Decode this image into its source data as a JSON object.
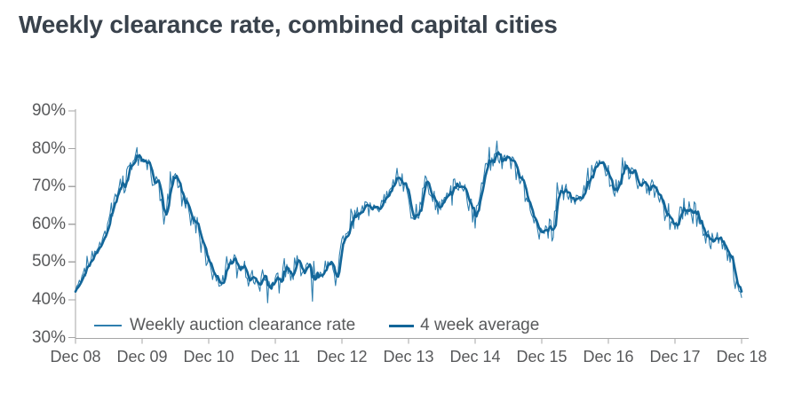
{
  "chart_data": {
    "type": "line",
    "title": "Weekly clearance rate, combined capital cities",
    "xlabel": "",
    "ylabel": "",
    "ylim": [
      30,
      90
    ],
    "x_range_years": [
      0,
      10
    ],
    "grid": false,
    "legend_position": "bottom-inside",
    "colors": {
      "title": "#39424c",
      "tick_label": "#58595b",
      "axis": "#a6a6a6",
      "weekly_line": "#2e7eae",
      "average_line": "#136699"
    },
    "y_ticks": [
      {
        "v": 30,
        "label": "30%"
      },
      {
        "v": 40,
        "label": "40%"
      },
      {
        "v": 50,
        "label": "50%"
      },
      {
        "v": 60,
        "label": "60%"
      },
      {
        "v": 70,
        "label": "70%"
      },
      {
        "v": 80,
        "label": "80%"
      },
      {
        "v": 90,
        "label": "90%"
      }
    ],
    "x_ticks": [
      {
        "t": 0,
        "label": "Dec 08"
      },
      {
        "t": 1,
        "label": "Dec 09"
      },
      {
        "t": 2,
        "label": "Dec 10"
      },
      {
        "t": 3,
        "label": "Dec 11"
      },
      {
        "t": 4,
        "label": "Dec 12"
      },
      {
        "t": 5,
        "label": "Dec 13"
      },
      {
        "t": 6,
        "label": "Dec 14"
      },
      {
        "t": 7,
        "label": "Dec 15"
      },
      {
        "t": 8,
        "label": "Dec 16"
      },
      {
        "t": 9,
        "label": "Dec 17"
      },
      {
        "t": 10,
        "label": "Dec 18"
      }
    ],
    "legend": [
      {
        "label": "Weekly auction clearance rate",
        "style": "thin"
      },
      {
        "label": "4 week average",
        "style": "thick"
      }
    ],
    "series_notes": "avg_points_monthly_pct are 4-week-average values read off the chart each month from Dec 2008 (index 0) to Dec 2018 (index 120); the weekly series is this trend plus weekly scatter.",
    "avg_points_monthly_pct": [
      44.0,
      45.7,
      48.6,
      50.5,
      54.3,
      58.2,
      60.6,
      65.3,
      69.8,
      72.2,
      76.1,
      78.5,
      77.2,
      75.6,
      73.0,
      71.5,
      59.0,
      70.0,
      74.0,
      68.0,
      63.7,
      60.2,
      58.2,
      54.3,
      49.6,
      46.5,
      44.2,
      47.5,
      50.8,
      49.0,
      47.6,
      46.8,
      46.2,
      45.8,
      45.5,
      44.0,
      43.8,
      46.0,
      48.0,
      47.0,
      48.8,
      46.5,
      48.0,
      46.5,
      45.2,
      49.5,
      50.4,
      46.5,
      53.5,
      58.2,
      61.4,
      62.2,
      64.0,
      65.7,
      63.3,
      64.5,
      67.2,
      70.6,
      72.5,
      71.3,
      66.5,
      63.3,
      62.2,
      72.2,
      67.2,
      65.3,
      66.5,
      68.5,
      69.5,
      71.8,
      67.5,
      64.3,
      61.2,
      70.0,
      74.8,
      76.5,
      78.4,
      78.0,
      76.8,
      74.5,
      72.0,
      69.0,
      64.0,
      59.8,
      58.2,
      57.8,
      58.5,
      67.5,
      66.8,
      68.0,
      66.0,
      66.9,
      70.9,
      74.5,
      76.1,
      75.4,
      73.7,
      68.5,
      71.0,
      74.7,
      74.0,
      72.4,
      69.6,
      70.4,
      69.0,
      67.8,
      64.1,
      61.4,
      60.5,
      62.5,
      64.2,
      63.3,
      61.5,
      59.0,
      56.6,
      55.8,
      55.2,
      53.0,
      50.5,
      44.5,
      41.5
    ],
    "weekly_extremes": [
      {
        "t_years": 0.92,
        "value_pct": 80.3
      },
      {
        "t_years": 2.88,
        "value_pct": 39.2
      },
      {
        "t_years": 3.56,
        "value_pct": 39.6
      },
      {
        "t_years": 4.83,
        "value_pct": 74.8
      },
      {
        "t_years": 6.33,
        "value_pct": 82.0
      },
      {
        "t_years": 7.24,
        "value_pct": 71.0
      },
      {
        "t_years": 8.21,
        "value_pct": 77.6
      },
      {
        "t_years": 10.0,
        "value_pct": 40.6
      }
    ],
    "noise": {
      "seed": 11,
      "amplitude_pct": 1.9,
      "spike_chance": 0.07,
      "spike_extra_pct": 2.6
    }
  }
}
